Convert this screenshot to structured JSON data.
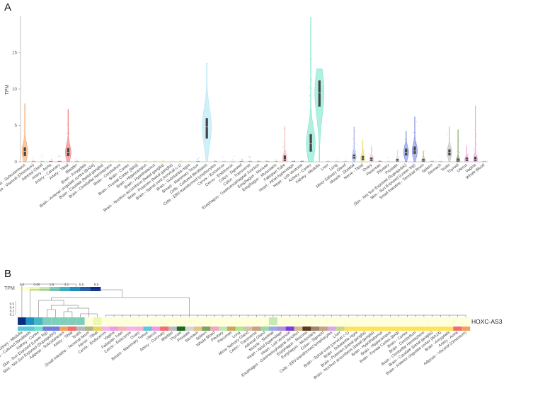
{
  "panels": {
    "a": "A",
    "b": "B"
  },
  "chart_data": [
    {
      "type": "violin",
      "ylabel": "TPM",
      "ylim": [
        0,
        20
      ],
      "yticks": [
        "0",
        "5",
        "10",
        "15"
      ],
      "grid": false,
      "categories": [
        "Adipose - Subcutaneous",
        "Adipose - Visceral (Omentum)",
        "Adrenal Gland",
        "Artery - Aorta",
        "Artery - Coronary",
        "Artery - Tibial",
        "Bladder",
        "Brain - Amygdala",
        "Brain - Anterior cingulate cortex (BA24)",
        "Brain - Caudate (basal ganglia)",
        "Brain - Cerebellar Hemisphere",
        "Brain - Cerebellum",
        "Brain - Cortex",
        "Brain - Frontal Cortex (BA9)",
        "Brain - Hippocampus",
        "Brain - Hypothalamus",
        "Brain - Nucleus accumbens (basal ganglia)",
        "Brain - Putamen (basal ganglia)",
        "Brain - Spinal cord (cervical c-1)",
        "Brain - Substantia nigra",
        "Breast - Mammary Tissue",
        "Cells - Cultured fibroblasts",
        "Cells - EBV-transformed lymphocytes",
        "Cervix - Ectocervix",
        "Cervix - Endocervix",
        "Colon - Sigmoid",
        "Colon - Transverse",
        "Esophagus - Gastroesophageal Junction",
        "Esophagus - Mucosa",
        "Esophagus - Muscularis",
        "Fallopian Tube",
        "Heart - Atrial Appendage",
        "Heart - Left Ventricle",
        "Kidney - Cortex",
        "Kidney - Medulla",
        "Liver",
        "Lung",
        "Minor Salivary Gland",
        "Muscle - Skeletal",
        "Nerve - Tibial",
        "Ovary",
        "Pancreas",
        "Pituitary",
        "Prostate",
        "Skin - Not Sun Exposed (Suprapubic)",
        "Skin - Sun Exposed (Lower leg)",
        "Small Intestine - Terminal Ileum",
        "Spleen",
        "Stomach",
        "Testis",
        "Thyroid",
        "Uterus",
        "Vagina",
        "Whole Blood"
      ],
      "medians": [
        1.4,
        0.05,
        0.15,
        0.05,
        0.15,
        1.3,
        0.1,
        0.02,
        0.02,
        0.02,
        0.02,
        0.02,
        0.02,
        0.02,
        0.02,
        0.02,
        0.02,
        0.02,
        0.02,
        0.02,
        0.1,
        4.8,
        0.02,
        0.3,
        0.3,
        0.05,
        0.1,
        0.05,
        0.02,
        0.05,
        0.3,
        0.02,
        0.02,
        2.5,
        9.5,
        0.02,
        0.1,
        0.05,
        0.7,
        0.5,
        0.3,
        0.02,
        0.1,
        0.2,
        1.3,
        1.5,
        0.2,
        0.02,
        0.05,
        1.3,
        0.2,
        0.3,
        0.3,
        0.02
      ],
      "q1": [
        0.8,
        0,
        0.05,
        0,
        0.05,
        0.8,
        0,
        0,
        0,
        0,
        0,
        0,
        0,
        0,
        0,
        0,
        0,
        0,
        0,
        0,
        0,
        3.2,
        0,
        0.1,
        0.1,
        0,
        0,
        0,
        0,
        0,
        0.1,
        0,
        0,
        1.4,
        7.6,
        0,
        0,
        0,
        0.45,
        0.25,
        0.1,
        0,
        0,
        0.05,
        0.9,
        1.1,
        0.05,
        0,
        0,
        0.9,
        0.05,
        0.1,
        0.1,
        0
      ],
      "q3": [
        2.0,
        0.15,
        0.3,
        0.15,
        0.35,
        1.9,
        0.25,
        0.05,
        0.05,
        0.05,
        0.05,
        0.05,
        0.05,
        0.05,
        0.05,
        0.05,
        0.05,
        0.05,
        0.05,
        0.05,
        0.25,
        6.0,
        0.05,
        0.5,
        0.5,
        0.15,
        0.25,
        0.15,
        0.05,
        0.15,
        0.9,
        0.05,
        0.05,
        3.8,
        11.2,
        0.05,
        0.25,
        0.15,
        1.0,
        0.8,
        0.6,
        0.05,
        0.25,
        0.4,
        1.8,
        2.1,
        0.4,
        0.05,
        0.15,
        1.7,
        0.45,
        0.6,
        0.7,
        0.05
      ],
      "max": [
        8.0,
        0.6,
        1.0,
        0.5,
        0.9,
        7.2,
        0.7,
        0.2,
        0.2,
        0.2,
        0.2,
        0.2,
        0.2,
        0.2,
        0.2,
        0.2,
        0.2,
        0.2,
        0.2,
        0.2,
        0.8,
        13.6,
        0.2,
        0.9,
        0.9,
        0.5,
        0.9,
        0.5,
        0.2,
        0.5,
        4.9,
        0.2,
        0.2,
        19.9,
        12.8,
        0.2,
        0.8,
        0.6,
        4.8,
        3.0,
        2.2,
        0.2,
        0.8,
        1.6,
        4.2,
        6.2,
        1.5,
        0.2,
        0.8,
        4.8,
        4.4,
        2.2,
        7.7,
        0.2
      ],
      "colors": [
        "#f5a05a",
        "#f5a05a",
        "#9bd8a6",
        "#f26d6d",
        "#f26d6d",
        "#f26d6d",
        "#bbbbbb",
        "#ffe25c",
        "#ffe25c",
        "#ffe25c",
        "#ffe25c",
        "#ffe25c",
        "#ffe25c",
        "#ffe25c",
        "#ffe25c",
        "#ffe25c",
        "#ffe25c",
        "#ffe25c",
        "#ffe25c",
        "#ffe25c",
        "#5cc8d8",
        "#a8e4f2",
        "#d9a6e6",
        "#f7b3e6",
        "#f7b3e6",
        "#c9a27e",
        "#c9a27e",
        "#d6b88a",
        "#d6b88a",
        "#d6b88a",
        "#f5b3b3",
        "#b38fd9",
        "#b38fd9",
        "#6fe3c7",
        "#6fe3c7",
        "#c9d68a",
        "#b3e68a",
        "#d6c2a6",
        "#9ba8e6",
        "#e6d65c",
        "#f7b3d6",
        "#c9a65c",
        "#c2e6b3",
        "#d6d6d6",
        "#6f7fe0",
        "#6f7fe0",
        "#b3b38a",
        "#c2c27e",
        "#e6c28a",
        "#b8b8b8",
        "#7fa35c",
        "#f09ae0",
        "#f09ae0",
        "#f2a8b8"
      ]
    },
    {
      "type": "heatmap",
      "legend_title": "TPM",
      "legend_ticks": [
        "0.0",
        "0.60",
        "1.6",
        "3.1",
        "5.5",
        "9.5"
      ],
      "legend_colors": [
        "#ffffd9",
        "#edf8b1",
        "#c7e9b4",
        "#7fcdbb",
        "#41b6c4",
        "#1d91c0",
        "#225ea8",
        "#0c2c84"
      ],
      "dendrogram_ticks": [
        "0.5",
        "0.4",
        "0.2",
        "0.1"
      ],
      "gene": "HOXC-AS3",
      "columns": [
        "Kidney - Medulla",
        "Cells - Cultured fibroblasts",
        "Kidney - Cortex",
        "Skin - Sun Exposed (Lower leg)",
        "Skin - Not Sun Exposed (Suprapubic)",
        "Adipose - Subcutaneous",
        "Artery - Tibial",
        "Testis",
        "Small Intestine - Terminal Ileum",
        "Nerve - Tibial",
        "Cervix - Endocervix",
        "Vagina",
        "Fallopian Tube",
        "Cervix - Ectocervix",
        "Ovary",
        "Breast - Mammary Tissue",
        "Uterus",
        "Artery - Coronary",
        "Bladder",
        "Thyroid",
        "Prostate",
        "Stomach",
        "Spleen",
        "Whole Blood",
        "Pituitary",
        "Pancreas",
        "Lung",
        "Minor Salivary Gland",
        "Colon - Transverse",
        "Adrenal Gland",
        "Muscle - Skeletal",
        "Heart - Atrial Appendage",
        "Heart - Left Ventricle",
        "Esophagus - Gastroesophageal Junction",
        "Esophagus - Mucosa",
        "Esophagus - Muscularis",
        "Colon - Sigmoid",
        "Cells - EBV-transformed lymphocytes",
        "Liver",
        "Brain - Spinal cord (cervical c-1)",
        "Brain - Substantia nigra",
        "Brain - Putamen (basal ganglia)",
        "Brain - Nucleus accumbens (basal ganglia)",
        "Brain - Hypothalamus",
        "Brain - Hippocampus",
        "Brain - Frontal Cortex (BA9)",
        "Brain - Cortex",
        "Brain - Cerebellum",
        "Brain - Cerebellar Hemisphere",
        "Brain - Caudate (basal ganglia)",
        "Brain - Anterior cingulate cortex (BA24)",
        "Brain - Amygdala",
        "Artery - Aorta",
        "Adipose - Visceral (Omentum)"
      ],
      "values": [
        9.5,
        4.8,
        2.5,
        1.5,
        1.3,
        1.4,
        1.3,
        1.3,
        0.2,
        0.5,
        0.3,
        0.3,
        0.3,
        0.3,
        0.3,
        0.1,
        0.3,
        0.15,
        0.1,
        0.2,
        0.2,
        0.05,
        0.02,
        0.02,
        0.1,
        0.02,
        0.1,
        0.05,
        0.1,
        0.15,
        0.7,
        0.02,
        0.02,
        0.05,
        0.02,
        0.05,
        0.05,
        0.02,
        0.02,
        0.02,
        0.02,
        0.02,
        0.02,
        0.02,
        0.02,
        0.02,
        0.02,
        0.02,
        0.02,
        0.02,
        0.02,
        0.02,
        0.05,
        0.05
      ],
      "colors": [
        "#5cc8d8",
        "#5cc8d8",
        "#6fe3c7",
        "#6f7fe0",
        "#6f7fe0",
        "#f5a05a",
        "#f26d6d",
        "#b8b8b8",
        "#b3b38a",
        "#e6d65c",
        "#f7b3e6",
        "#f09ae0",
        "#f5b3b3",
        "#f7b3e6",
        "#f7b3d6",
        "#5cc8d8",
        "#f09ae0",
        "#f26d6d",
        "#bbbbbb",
        "#1a6b1a",
        "#d6d6d6",
        "#e6c28a",
        "#7fa35c",
        "#f2a8b8",
        "#c2e6b3",
        "#c9a65c",
        "#b3e68a",
        "#d6c2a6",
        "#c9a27e",
        "#9bd8a6",
        "#9ba8e6",
        "#b38fd9",
        "#7b3fd9",
        "#d6b88a",
        "#5c3a1a",
        "#a0856a",
        "#c9a27e",
        "#d9a6e6",
        "#c9d68a",
        "#ffe25c",
        "#ffe25c",
        "#ffe25c",
        "#ffe25c",
        "#ffe25c",
        "#ffe25c",
        "#ffe25c",
        "#ffe25c",
        "#ffe25c",
        "#ffe25c",
        "#ffe25c",
        "#ffe25c",
        "#ffe25c",
        "#f26d6d",
        "#f5a05a"
      ]
    }
  ]
}
